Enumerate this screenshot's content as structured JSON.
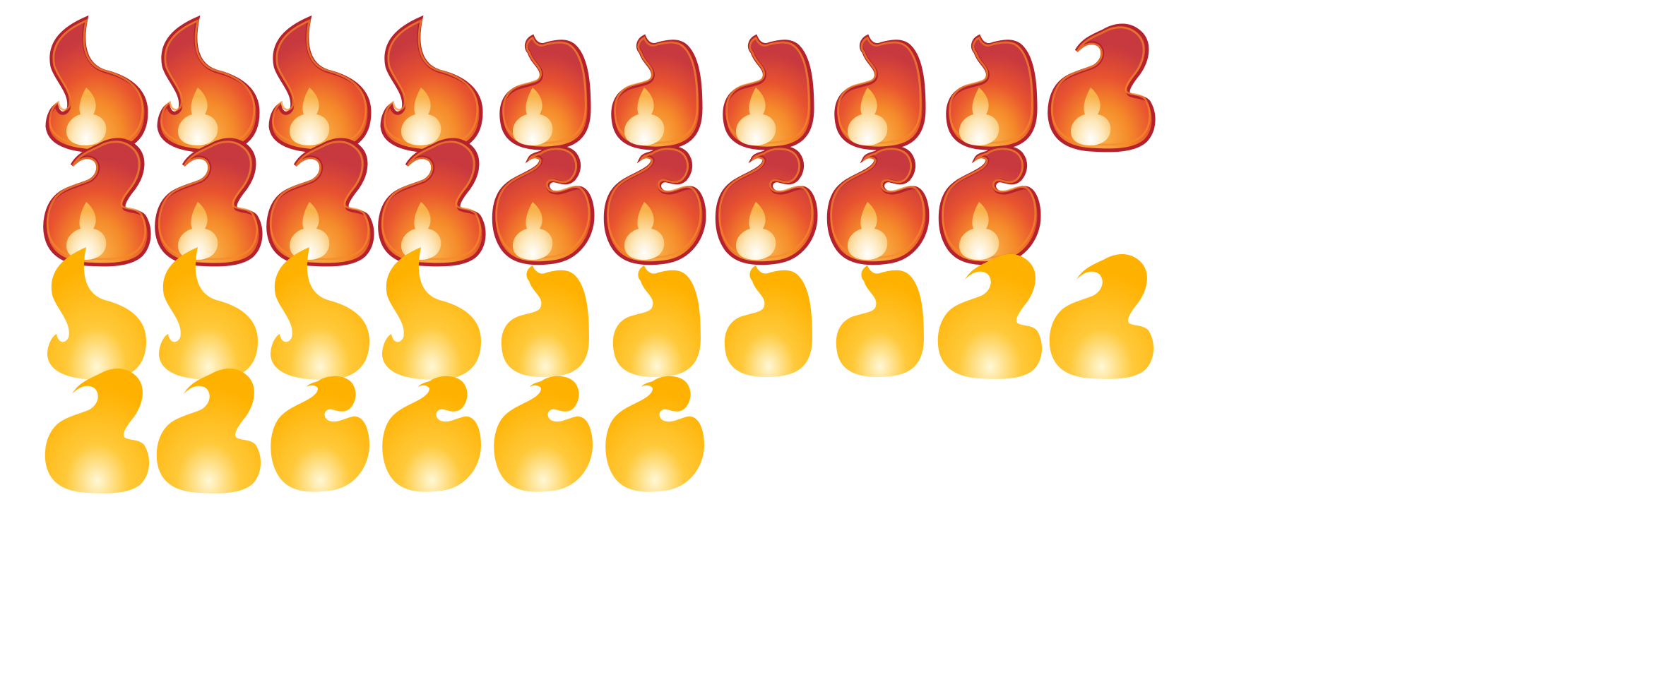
{
  "sprite_sheet": {
    "description_layers": [
      "red-flame",
      "yellow-flame"
    ],
    "colors": {
      "red_outer": "#b5222e",
      "red_body": "#c8383f",
      "red_mid": "#e8532f",
      "red_orange": "#f58a2a",
      "red_highlight": "#f9b24a",
      "inner_light": "#fde7b8",
      "yellow_body": "#ffb100",
      "yellow_mid": "#ffc93a",
      "yellow_light": "#fff7d6"
    },
    "frames": [
      {
        "style": "red",
        "shape": "A"
      },
      {
        "style": "red",
        "shape": "A"
      },
      {
        "style": "red",
        "shape": "A"
      },
      {
        "style": "red",
        "shape": "A"
      },
      {
        "style": "red",
        "shape": "B"
      },
      {
        "style": "red",
        "shape": "B"
      },
      {
        "style": "red",
        "shape": "B"
      },
      {
        "style": "red",
        "shape": "B"
      },
      {
        "style": "red",
        "shape": "B"
      },
      {
        "style": "red",
        "shape": "C"
      },
      {
        "style": "red",
        "shape": "C"
      },
      {
        "style": "red",
        "shape": "C"
      },
      {
        "style": "red",
        "shape": "C"
      },
      {
        "style": "red",
        "shape": "C"
      },
      {
        "style": "red",
        "shape": "D"
      },
      {
        "style": "red",
        "shape": "D"
      },
      {
        "style": "red",
        "shape": "D"
      },
      {
        "style": "red",
        "shape": "D"
      },
      {
        "style": "red",
        "shape": "D"
      },
      {
        "style": "yellow",
        "shape": "A"
      },
      {
        "style": "yellow",
        "shape": "A"
      },
      {
        "style": "yellow",
        "shape": "A"
      },
      {
        "style": "yellow",
        "shape": "A"
      },
      {
        "style": "yellow",
        "shape": "B"
      },
      {
        "style": "yellow",
        "shape": "B"
      },
      {
        "style": "yellow",
        "shape": "B"
      },
      {
        "style": "yellow",
        "shape": "B"
      },
      {
        "style": "yellow",
        "shape": "C"
      },
      {
        "style": "yellow",
        "shape": "C"
      },
      {
        "style": "yellow",
        "shape": "C"
      },
      {
        "style": "yellow",
        "shape": "C"
      },
      {
        "style": "yellow",
        "shape": "D"
      },
      {
        "style": "yellow",
        "shape": "D"
      },
      {
        "style": "yellow",
        "shape": "D"
      },
      {
        "style": "yellow",
        "shape": "D"
      }
    ],
    "frame_count": 35
  }
}
